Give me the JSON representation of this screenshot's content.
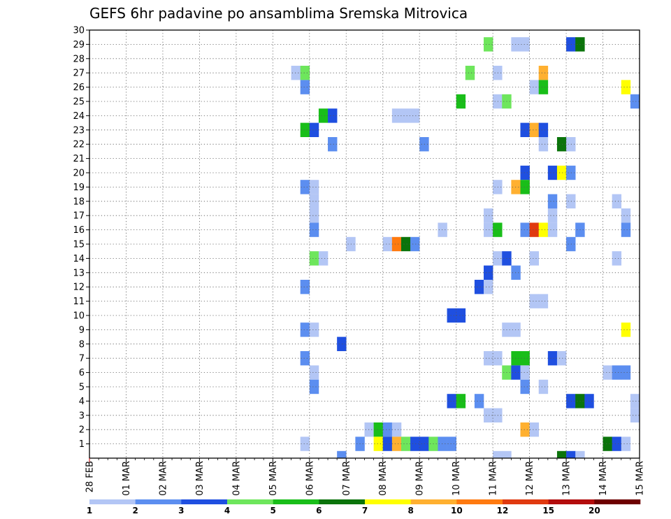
{
  "chart_data": {
    "type": "heatmap",
    "title": "GEFS 6hr padavine po ansamblima Sremska Mitrovica",
    "x_tick_labels": [
      "28 FEB",
      "01 MAR",
      "02 MAR",
      "03 MAR",
      "04 MAR",
      "05 MAR",
      "06 MAR",
      "07 MAR",
      "08 MAR",
      "09 MAR",
      "10 MAR",
      "11 MAR",
      "12 MAR",
      "13 MAR",
      "14 MAR",
      "15 MAR"
    ],
    "y_tick_labels": [
      "1",
      "2",
      "3",
      "4",
      "5",
      "6",
      "7",
      "8",
      "9",
      "10",
      "11",
      "12",
      "13",
      "14",
      "15",
      "16",
      "17",
      "18",
      "19",
      "20",
      "21",
      "22",
      "23",
      "24",
      "25",
      "26",
      "27",
      "28",
      "29",
      "30"
    ],
    "y_range": [
      0,
      30
    ],
    "steps_per_day": 4,
    "total_steps": 60,
    "grid": "dotted",
    "colorbar": {
      "levels": [
        "1",
        "2",
        "3",
        "4",
        "5",
        "6",
        "7",
        "8",
        "10",
        "12",
        "15",
        "20"
      ],
      "colors": [
        "#b3c6f5",
        "#5c8ef0",
        "#1f4fe0",
        "#6ee65c",
        "#19be19",
        "#0b740b",
        "#ffff00",
        "#ffb030",
        "#ff7a10",
        "#e03a10",
        "#b30d0d",
        "#6e0000"
      ]
    },
    "cells": [
      {
        "m": 29,
        "s": 44,
        "c": 4
      },
      {
        "m": 29,
        "s": 47,
        "c": 1
      },
      {
        "m": 29,
        "s": 48,
        "c": 1
      },
      {
        "m": 29,
        "s": 53,
        "c": 3
      },
      {
        "m": 29,
        "s": 54,
        "c": 6
      },
      {
        "m": 27,
        "s": 23,
        "c": 1
      },
      {
        "m": 27,
        "s": 24,
        "c": 4
      },
      {
        "m": 27,
        "s": 42,
        "c": 4
      },
      {
        "m": 27,
        "s": 45,
        "c": 1
      },
      {
        "m": 27,
        "s": 50,
        "c": 8
      },
      {
        "m": 26,
        "s": 24,
        "c": 2
      },
      {
        "m": 26,
        "s": 49,
        "c": 1
      },
      {
        "m": 26,
        "s": 50,
        "c": 5
      },
      {
        "m": 26,
        "s": 59,
        "c": 7
      },
      {
        "m": 25,
        "s": 41,
        "c": 5
      },
      {
        "m": 25,
        "s": 45,
        "c": 1
      },
      {
        "m": 25,
        "s": 46,
        "c": 4
      },
      {
        "m": 25,
        "s": 60,
        "c": 2
      },
      {
        "m": 24,
        "s": 26,
        "c": 5
      },
      {
        "m": 24,
        "s": 27,
        "c": 3
      },
      {
        "m": 24,
        "s": 34,
        "c": 1
      },
      {
        "m": 24,
        "s": 35,
        "c": 1
      },
      {
        "m": 24,
        "s": 36,
        "c": 1
      },
      {
        "m": 23,
        "s": 24,
        "c": 5
      },
      {
        "m": 23,
        "s": 25,
        "c": 3
      },
      {
        "m": 23,
        "s": 48,
        "c": 3
      },
      {
        "m": 23,
        "s": 49,
        "c": 8
      },
      {
        "m": 23,
        "s": 50,
        "c": 3
      },
      {
        "m": 22,
        "s": 27,
        "c": 2
      },
      {
        "m": 22,
        "s": 37,
        "c": 2
      },
      {
        "m": 22,
        "s": 50,
        "c": 1
      },
      {
        "m": 22,
        "s": 52,
        "c": 6
      },
      {
        "m": 22,
        "s": 53,
        "c": 1
      },
      {
        "m": 20,
        "s": 48,
        "c": 3
      },
      {
        "m": 20,
        "s": 51,
        "c": 3
      },
      {
        "m": 20,
        "s": 52,
        "c": 7
      },
      {
        "m": 20,
        "s": 53,
        "c": 2
      },
      {
        "m": 19,
        "s": 24,
        "c": 2
      },
      {
        "m": 19,
        "s": 25,
        "c": 1
      },
      {
        "m": 19,
        "s": 45,
        "c": 1
      },
      {
        "m": 19,
        "s": 47,
        "c": 8
      },
      {
        "m": 19,
        "s": 48,
        "c": 5
      },
      {
        "m": 18,
        "s": 25,
        "c": 1
      },
      {
        "m": 18,
        "s": 51,
        "c": 2
      },
      {
        "m": 18,
        "s": 53,
        "c": 1
      },
      {
        "m": 18,
        "s": 58,
        "c": 1
      },
      {
        "m": 17,
        "s": 25,
        "c": 1
      },
      {
        "m": 17,
        "s": 44,
        "c": 1
      },
      {
        "m": 17,
        "s": 51,
        "c": 1
      },
      {
        "m": 17,
        "s": 59,
        "c": 1
      },
      {
        "m": 16,
        "s": 25,
        "c": 2
      },
      {
        "m": 16,
        "s": 39,
        "c": 1
      },
      {
        "m": 16,
        "s": 44,
        "c": 1
      },
      {
        "m": 16,
        "s": 45,
        "c": 5
      },
      {
        "m": 16,
        "s": 48,
        "c": 2
      },
      {
        "m": 16,
        "s": 49,
        "c": 10
      },
      {
        "m": 16,
        "s": 50,
        "c": 7
      },
      {
        "m": 16,
        "s": 51,
        "c": 1
      },
      {
        "m": 16,
        "s": 54,
        "c": 2
      },
      {
        "m": 16,
        "s": 59,
        "c": 2
      },
      {
        "m": 15,
        "s": 29,
        "c": 1
      },
      {
        "m": 15,
        "s": 33,
        "c": 1
      },
      {
        "m": 15,
        "s": 34,
        "c": 9
      },
      {
        "m": 15,
        "s": 35,
        "c": 6
      },
      {
        "m": 15,
        "s": 36,
        "c": 2
      },
      {
        "m": 15,
        "s": 53,
        "c": 2
      },
      {
        "m": 14,
        "s": 25,
        "c": 4
      },
      {
        "m": 14,
        "s": 26,
        "c": 1
      },
      {
        "m": 14,
        "s": 45,
        "c": 1
      },
      {
        "m": 14,
        "s": 46,
        "c": 3
      },
      {
        "m": 14,
        "s": 49,
        "c": 1
      },
      {
        "m": 14,
        "s": 58,
        "c": 1
      },
      {
        "m": 13,
        "s": 44,
        "c": 3
      },
      {
        "m": 13,
        "s": 47,
        "c": 2
      },
      {
        "m": 12,
        "s": 24,
        "c": 2
      },
      {
        "m": 12,
        "s": 43,
        "c": 3
      },
      {
        "m": 12,
        "s": 44,
        "c": 1
      },
      {
        "m": 11,
        "s": 49,
        "c": 1
      },
      {
        "m": 11,
        "s": 50,
        "c": 1
      },
      {
        "m": 10,
        "s": 40,
        "c": 3
      },
      {
        "m": 10,
        "s": 41,
        "c": 3
      },
      {
        "m": 9,
        "s": 24,
        "c": 2
      },
      {
        "m": 9,
        "s": 25,
        "c": 1
      },
      {
        "m": 9,
        "s": 46,
        "c": 1
      },
      {
        "m": 9,
        "s": 47,
        "c": 1
      },
      {
        "m": 9,
        "s": 59,
        "c": 7
      },
      {
        "m": 8,
        "s": 28,
        "c": 3
      },
      {
        "m": 7,
        "s": 24,
        "c": 2
      },
      {
        "m": 7,
        "s": 44,
        "c": 1
      },
      {
        "m": 7,
        "s": 45,
        "c": 1
      },
      {
        "m": 7,
        "s": 47,
        "c": 5
      },
      {
        "m": 7,
        "s": 48,
        "c": 5
      },
      {
        "m": 7,
        "s": 51,
        "c": 3
      },
      {
        "m": 7,
        "s": 52,
        "c": 1
      },
      {
        "m": 6,
        "s": 25,
        "c": 1
      },
      {
        "m": 6,
        "s": 46,
        "c": 4
      },
      {
        "m": 6,
        "s": 47,
        "c": 3
      },
      {
        "m": 6,
        "s": 48,
        "c": 1
      },
      {
        "m": 6,
        "s": 57,
        "c": 1
      },
      {
        "m": 6,
        "s": 58,
        "c": 2
      },
      {
        "m": 6,
        "s": 59,
        "c": 2
      },
      {
        "m": 5,
        "s": 25,
        "c": 2
      },
      {
        "m": 5,
        "s": 48,
        "c": 2
      },
      {
        "m": 5,
        "s": 50,
        "c": 1
      },
      {
        "m": 4,
        "s": 40,
        "c": 3
      },
      {
        "m": 4,
        "s": 41,
        "c": 5
      },
      {
        "m": 4,
        "s": 43,
        "c": 2
      },
      {
        "m": 4,
        "s": 53,
        "c": 3
      },
      {
        "m": 4,
        "s": 54,
        "c": 6
      },
      {
        "m": 4,
        "s": 55,
        "c": 3
      },
      {
        "m": 4,
        "s": 60,
        "c": 1
      },
      {
        "m": 3,
        "s": 44,
        "c": 1
      },
      {
        "m": 3,
        "s": 45,
        "c": 1
      },
      {
        "m": 3,
        "s": 60,
        "c": 1
      },
      {
        "m": 2,
        "s": 31,
        "c": 1
      },
      {
        "m": 2,
        "s": 32,
        "c": 5
      },
      {
        "m": 2,
        "s": 33,
        "c": 2
      },
      {
        "m": 2,
        "s": 34,
        "c": 1
      },
      {
        "m": 2,
        "s": 48,
        "c": 8
      },
      {
        "m": 2,
        "s": 49,
        "c": 1
      },
      {
        "m": 1,
        "s": 24,
        "c": 1
      },
      {
        "m": 1,
        "s": 30,
        "c": 2
      },
      {
        "m": 1,
        "s": 32,
        "c": 7
      },
      {
        "m": 1,
        "s": 33,
        "c": 3
      },
      {
        "m": 1,
        "s": 34,
        "c": 8
      },
      {
        "m": 1,
        "s": 35,
        "c": 4
      },
      {
        "m": 1,
        "s": 36,
        "c": 3
      },
      {
        "m": 1,
        "s": 37,
        "c": 3
      },
      {
        "m": 1,
        "s": 38,
        "c": 4
      },
      {
        "m": 1,
        "s": 39,
        "c": 2
      },
      {
        "m": 1,
        "s": 40,
        "c": 2
      },
      {
        "m": 1,
        "s": 57,
        "c": 6
      },
      {
        "m": 1,
        "s": 58,
        "c": 3
      },
      {
        "m": 1,
        "s": 59,
        "c": 1
      },
      {
        "m": 0,
        "s": 28,
        "c": 2
      },
      {
        "m": 0,
        "s": 45,
        "c": 1
      },
      {
        "m": 0,
        "s": 46,
        "c": 1
      },
      {
        "m": 0,
        "s": 52,
        "c": 6
      },
      {
        "m": 0,
        "s": 53,
        "c": 3
      },
      {
        "m": 0,
        "s": 54,
        "c": 1
      }
    ]
  }
}
